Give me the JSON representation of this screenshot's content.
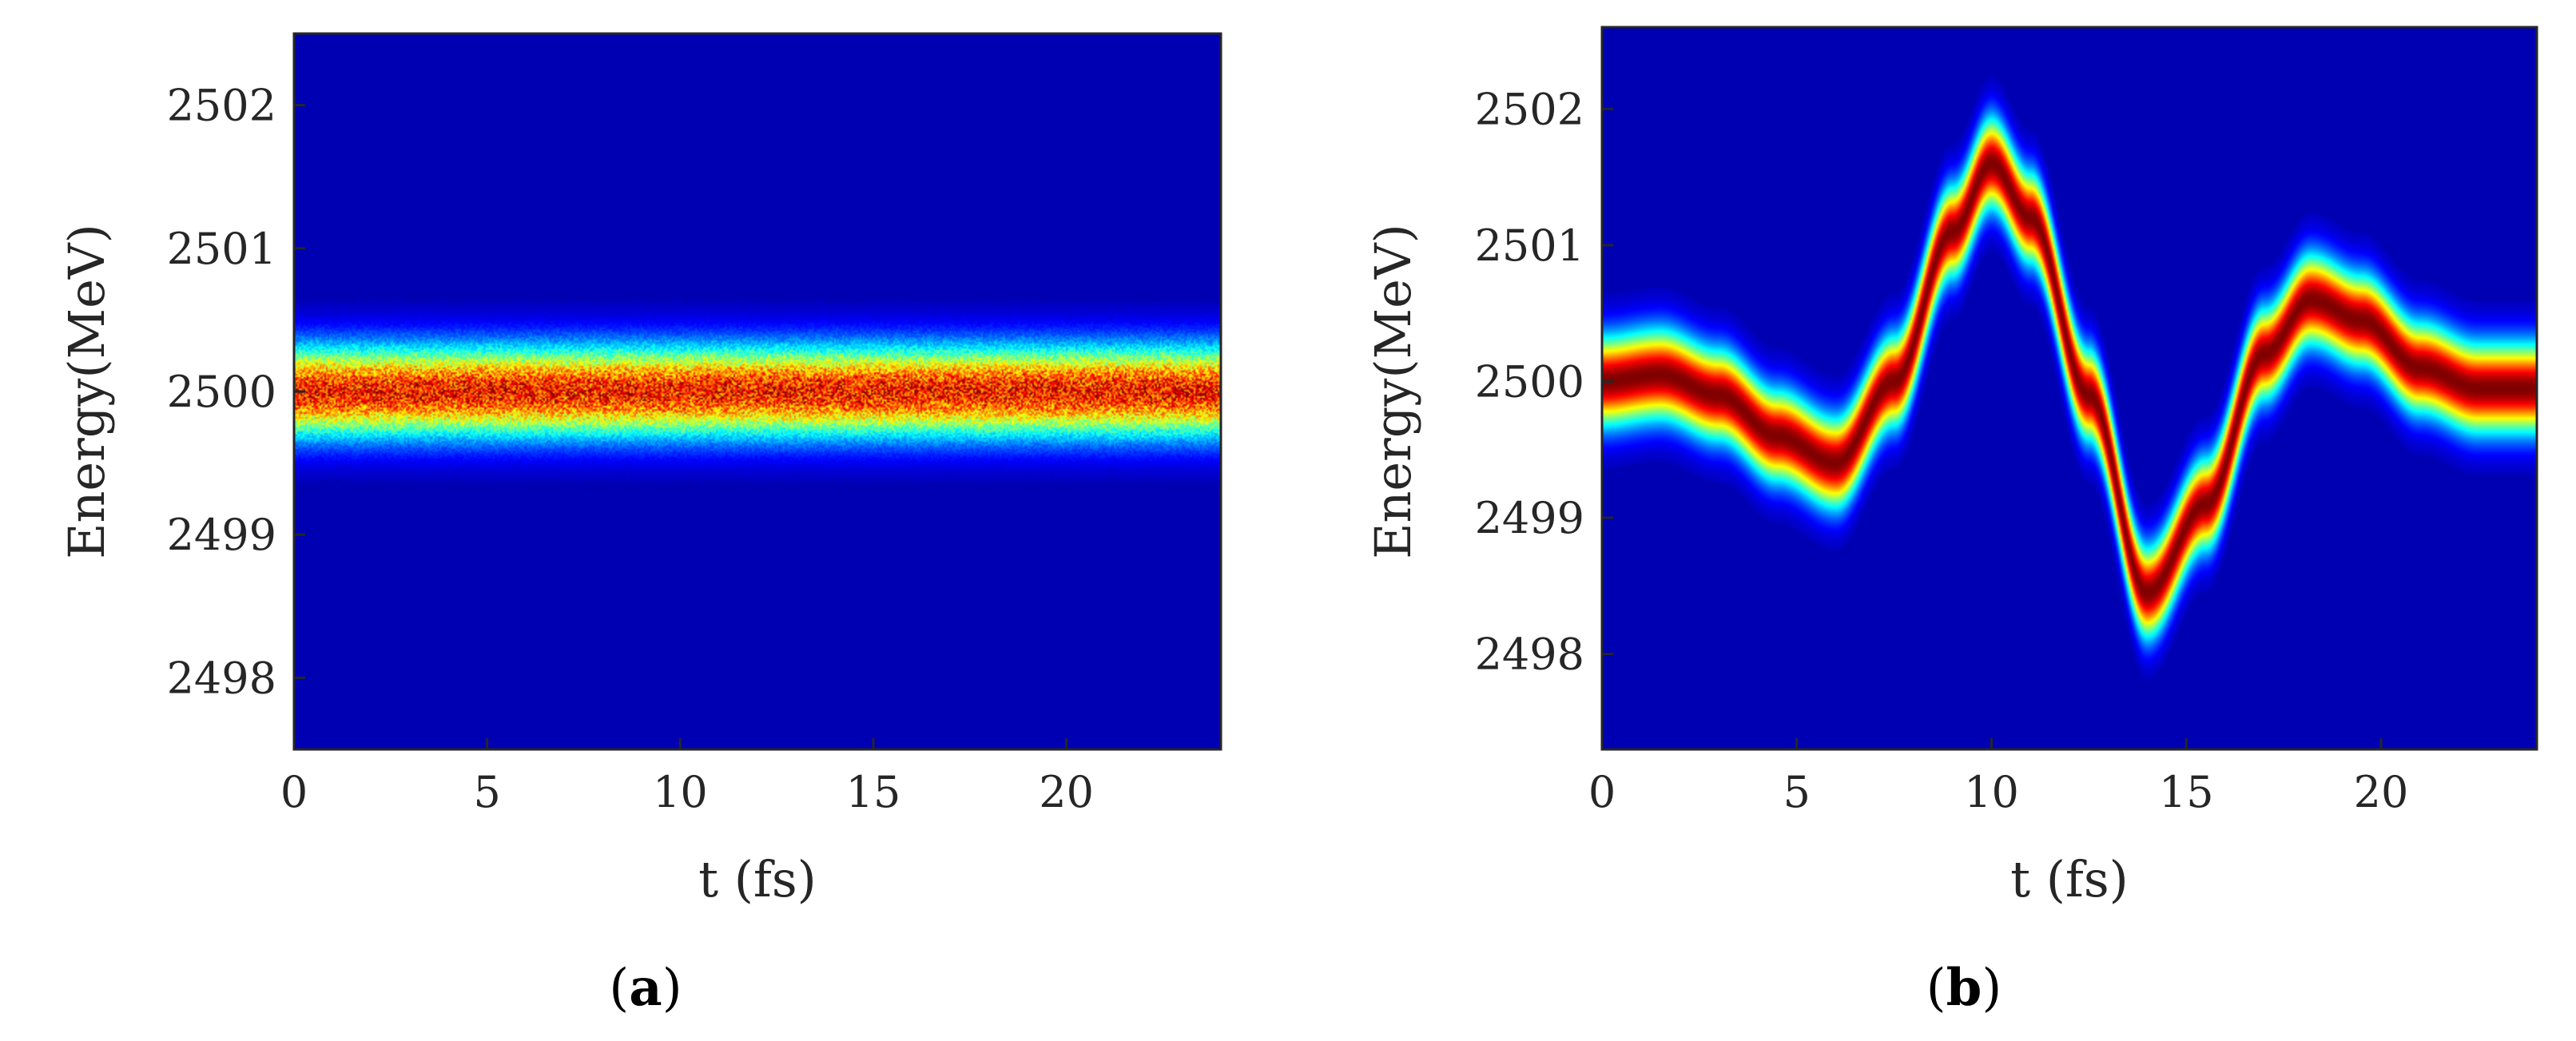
{
  "chart_data": [
    {
      "type": "heatmap",
      "panel_label": "a",
      "xlabel": "t (fs)",
      "ylabel": "Energy(MeV)",
      "xlim": [
        0,
        24
      ],
      "ylim": [
        2497.5,
        2502.5
      ],
      "xticks": [
        0,
        5,
        10,
        15,
        20
      ],
      "yticks": [
        2498,
        2499,
        2500,
        2501,
        2502
      ],
      "colormap": "jet",
      "background_color": "#00008f",
      "density": {
        "centroid_energy": 2500.0,
        "rms_energy_spread": 0.22,
        "peak_level": 0.85,
        "noise": "speckled"
      },
      "centroid_curve": {
        "t": [
          0,
          6,
          12,
          18,
          24
        ],
        "energy": [
          2500.0,
          2500.0,
          2500.0,
          2500.0,
          2500.0
        ]
      }
    },
    {
      "type": "heatmap",
      "panel_label": "b",
      "xlabel": "t (fs)",
      "ylabel": "Energy(MeV)",
      "xlim": [
        0,
        24
      ],
      "ylim": [
        2497.3,
        2502.6
      ],
      "xticks": [
        0,
        5,
        10,
        15,
        20
      ],
      "yticks": [
        2498,
        2499,
        2500,
        2501,
        2502
      ],
      "colormap": "jet",
      "background_color": "#00008f",
      "density": {
        "rms_energy_spread": 0.22,
        "peak_level": 1.0,
        "noise": "smooth"
      },
      "centroid_curve": {
        "t": [
          0,
          1.5,
          3,
          4.5,
          6,
          7.5,
          9,
          10,
          11,
          12.5,
          14,
          15.5,
          17,
          18.2,
          19.5,
          21,
          22.5,
          24
        ],
        "energy": [
          2500.0,
          2500.05,
          2499.9,
          2499.6,
          2499.4,
          2500.0,
          2501.1,
          2501.6,
          2501.2,
          2499.9,
          2498.45,
          2499.1,
          2500.2,
          2500.6,
          2500.45,
          2500.1,
          2499.95,
          2499.95
        ]
      }
    }
  ]
}
